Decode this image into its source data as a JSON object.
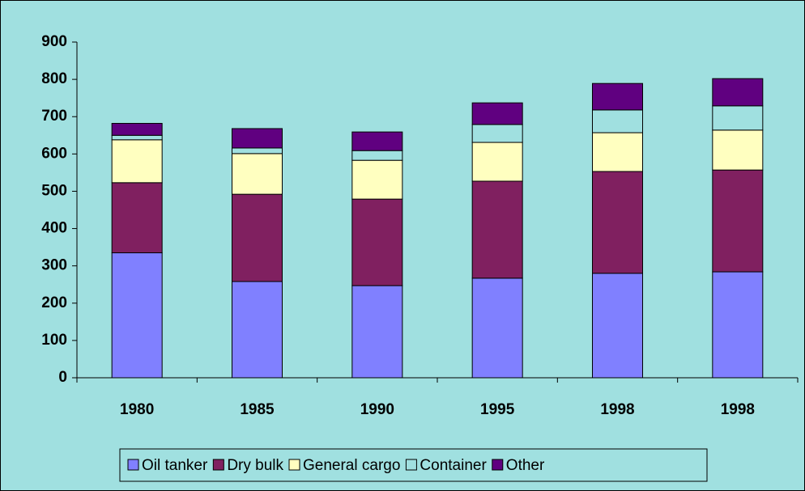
{
  "chart_data": {
    "type": "stacked_bar",
    "categories": [
      "1980",
      "1985",
      "1990",
      "1995",
      "1998",
      "1998"
    ],
    "series": [
      {
        "name": "Oil tanker",
        "color": "#8080ff",
        "values": [
          335,
          258,
          247,
          267,
          280,
          284
        ]
      },
      {
        "name": "Dry bulk",
        "color": "#802060",
        "values": [
          188,
          234,
          232,
          260,
          273,
          273
        ]
      },
      {
        "name": "General cargo",
        "color": "#ffffc0",
        "values": [
          115,
          109,
          104,
          104,
          104,
          107
        ]
      },
      {
        "name": "Container",
        "color": "#a0e0e0",
        "values": [
          12,
          15,
          26,
          48,
          61,
          65
        ]
      },
      {
        "name": "Other",
        "color": "#600080",
        "values": [
          32,
          52,
          50,
          58,
          71,
          73
        ]
      }
    ],
    "ylim": [
      0,
      900
    ],
    "yticks": [
      0,
      100,
      200,
      300,
      400,
      500,
      600,
      700,
      800,
      900
    ],
    "legend": "bottom"
  }
}
